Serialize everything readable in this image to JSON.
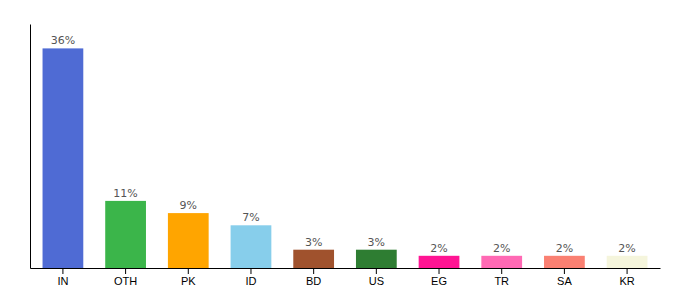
{
  "chart_data": {
    "type": "bar",
    "categories": [
      "IN",
      "OTH",
      "PK",
      "ID",
      "BD",
      "US",
      "EG",
      "TR",
      "SA",
      "KR"
    ],
    "values": [
      36,
      11,
      9,
      7,
      3,
      3,
      2,
      2,
      2,
      2
    ],
    "value_labels": [
      "36%",
      "11%",
      "9%",
      "7%",
      "3%",
      "3%",
      "2%",
      "2%",
      "2%",
      "2%"
    ],
    "colors": [
      "#4F6BD4",
      "#3BB54A",
      "#FFA500",
      "#87CEEB",
      "#A0522D",
      "#2E7D32",
      "#FF1493",
      "#FF69B4",
      "#FA8072",
      "#F5F5DC"
    ],
    "ylim": [
      0,
      40
    ],
    "grid": false,
    "data_labels": true,
    "tick_labels": "x"
  }
}
